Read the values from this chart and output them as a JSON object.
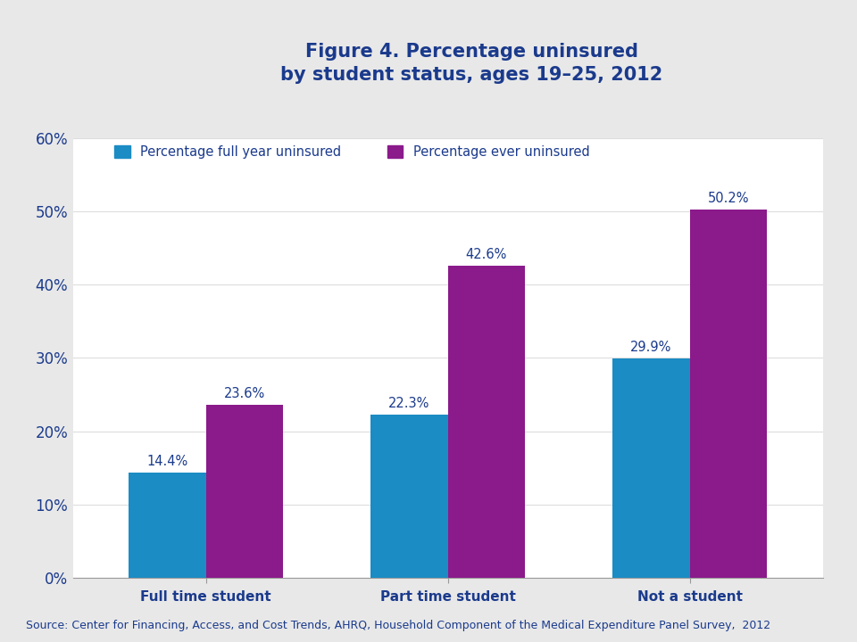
{
  "title": "Figure 4. Percentage uninsured\nby student status, ages 19–25, 2012",
  "title_color": "#1A3A8C",
  "title_fontsize": 15,
  "categories": [
    "Full time student",
    "Part time student",
    "Not a student"
  ],
  "series": [
    {
      "label": "Percentage full year uninsured",
      "values": [
        14.4,
        22.3,
        29.9
      ],
      "color": "#1B8CC4"
    },
    {
      "label": "Percentage ever uninsured",
      "values": [
        23.6,
        42.6,
        50.2
      ],
      "color": "#8B1A8B"
    }
  ],
  "ylim": [
    0,
    60
  ],
  "yticks": [
    0,
    10,
    20,
    30,
    40,
    50,
    60
  ],
  "ytick_labels": [
    "0%",
    "10%",
    "20%",
    "30%",
    "40%",
    "50%",
    "60%"
  ],
  "bar_width": 0.32,
  "ylabel": "",
  "xlabel": "",
  "background_color": "#E8E8E8",
  "plot_bg_color": "#FFFFFF",
  "tick_color": "#1A3A8C",
  "tick_fontsize": 12,
  "category_fontsize": 11,
  "label_fontsize": 10.5,
  "legend_fontsize": 10.5,
  "source_text": "Source: Center for Financing, Access, and Cost Trends, AHRQ, Household Component of the Medical Expenditure Panel Survey,  2012",
  "source_fontsize": 9,
  "separator_color": "#AAAAAA"
}
